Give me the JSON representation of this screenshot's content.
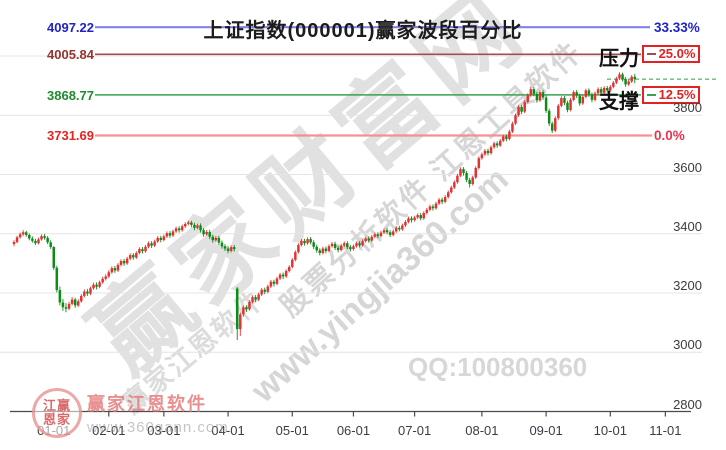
{
  "header": {
    "title": "上证指数(000001)赢家波段百分比"
  },
  "watermarks": {
    "site_name": "赢家财富网",
    "software_line": "股票分析软件 江恩工具软件",
    "url_diagonal": "www.yingjia360.com",
    "corner_software": "赢家江恩软件",
    "qq": "QQ:100800360"
  },
  "logo": {
    "seal_row1": "江赢",
    "seal_row2": "恩家",
    "name": "赢家江恩软件",
    "url": "www.360gann.com"
  },
  "chart_data": {
    "type": "candlestick",
    "symbol": "上证指数",
    "code": "000001",
    "up_color": "#e23333",
    "down_color": "#0d8c17",
    "grid_color": "#e4e4e4",
    "ylim": [
      2800,
      4160
    ],
    "gridline_prices": [
      4000,
      3800,
      3600,
      3400,
      3200,
      3000
    ],
    "y_axis_labels": [
      3800,
      3600,
      3400,
      3200,
      3000,
      2800
    ],
    "x_axis": {
      "labels": [
        "01-01",
        "02-01",
        "03-01",
        "04-01",
        "05-01",
        "06-01",
        "07-01",
        "08-01",
        "09-01",
        "10-01",
        "11-01"
      ],
      "month_start_indices": [
        13,
        31,
        49,
        70,
        91,
        111,
        131,
        153,
        174,
        195,
        213
      ]
    },
    "level_lines": [
      {
        "price": 4097.22,
        "label": "4097.22",
        "pct": "33.33%",
        "line_color": "#8282e6",
        "label_color": "#2023c6"
      },
      {
        "price": 4005.84,
        "label": "4005.84",
        "pct": "25.0%",
        "tag": "压力",
        "line_color": "#a34d4d",
        "label_color": "#9a3030"
      },
      {
        "price": 3868.77,
        "label": "3868.77",
        "pct": "12.5%",
        "tag": "支撑",
        "line_color": "#3aa14e",
        "label_color": "#1f8a30"
      },
      {
        "price": 3731.69,
        "label": "3731.69",
        "pct": "0.0%",
        "line_color": "#f49090",
        "label_color": "#e62222"
      }
    ],
    "last_price": 3922,
    "last_price_line_color": "#2f9e44",
    "candles": [
      [
        3365,
        3378,
        3358,
        3372
      ],
      [
        3372,
        3393,
        3368,
        3388
      ],
      [
        3388,
        3404,
        3384,
        3398
      ],
      [
        3398,
        3412,
        3392,
        3405
      ],
      [
        3405,
        3410,
        3390,
        3396
      ],
      [
        3396,
        3401,
        3378,
        3384
      ],
      [
        3384,
        3391,
        3370,
        3376
      ],
      [
        3376,
        3383,
        3362,
        3368
      ],
      [
        3368,
        3387,
        3364,
        3381
      ],
      [
        3381,
        3398,
        3377,
        3392
      ],
      [
        3392,
        3399,
        3380,
        3386
      ],
      [
        3386,
        3392,
        3365,
        3371
      ],
      [
        3371,
        3378,
        3349,
        3355
      ],
      [
        3355,
        3358,
        3278,
        3285
      ],
      [
        3285,
        3292,
        3202,
        3210
      ],
      [
        3210,
        3222,
        3158,
        3168
      ],
      [
        3168,
        3180,
        3140,
        3152
      ],
      [
        3152,
        3166,
        3135,
        3147
      ],
      [
        3147,
        3170,
        3142,
        3163
      ],
      [
        3163,
        3186,
        3158,
        3178
      ],
      [
        3178,
        3184,
        3150,
        3158
      ],
      [
        3158,
        3179,
        3153,
        3172
      ],
      [
        3172,
        3196,
        3167,
        3190
      ],
      [
        3190,
        3212,
        3185,
        3205
      ],
      [
        3205,
        3214,
        3190,
        3198
      ],
      [
        3198,
        3222,
        3193,
        3216
      ],
      [
        3216,
        3235,
        3211,
        3228
      ],
      [
        3228,
        3236,
        3212,
        3221
      ],
      [
        3221,
        3242,
        3216,
        3236
      ],
      [
        3236,
        3255,
        3231,
        3248
      ],
      [
        3248,
        3263,
        3242,
        3256
      ],
      [
        3256,
        3277,
        3251,
        3270
      ],
      [
        3270,
        3290,
        3265,
        3284
      ],
      [
        3284,
        3291,
        3268,
        3276
      ],
      [
        3276,
        3301,
        3271,
        3295
      ],
      [
        3295,
        3314,
        3290,
        3308
      ],
      [
        3308,
        3315,
        3292,
        3300
      ],
      [
        3300,
        3322,
        3295,
        3316
      ],
      [
        3316,
        3334,
        3311,
        3328
      ],
      [
        3328,
        3335,
        3312,
        3320
      ],
      [
        3320,
        3341,
        3315,
        3335
      ],
      [
        3335,
        3354,
        3330,
        3348
      ],
      [
        3348,
        3355,
        3333,
        3341
      ],
      [
        3341,
        3362,
        3336,
        3356
      ],
      [
        3356,
        3374,
        3351,
        3368
      ],
      [
        3368,
        3375,
        3352,
        3360
      ],
      [
        3360,
        3380,
        3355,
        3374
      ],
      [
        3374,
        3392,
        3369,
        3386
      ],
      [
        3386,
        3393,
        3371,
        3379
      ],
      [
        3379,
        3397,
        3374,
        3391
      ],
      [
        3391,
        3408,
        3386,
        3402
      ],
      [
        3402,
        3409,
        3386,
        3394
      ],
      [
        3394,
        3414,
        3389,
        3408
      ],
      [
        3408,
        3424,
        3403,
        3418
      ],
      [
        3418,
        3425,
        3404,
        3412
      ],
      [
        3412,
        3431,
        3407,
        3425
      ],
      [
        3425,
        3439,
        3420,
        3433
      ],
      [
        3433,
        3445,
        3428,
        3438
      ],
      [
        3438,
        3444,
        3422,
        3430
      ],
      [
        3430,
        3437,
        3412,
        3420
      ],
      [
        3420,
        3434,
        3415,
        3428
      ],
      [
        3428,
        3435,
        3404,
        3412
      ],
      [
        3412,
        3419,
        3390,
        3398
      ],
      [
        3398,
        3412,
        3393,
        3406
      ],
      [
        3406,
        3413,
        3382,
        3390
      ],
      [
        3390,
        3397,
        3370,
        3378
      ],
      [
        3378,
        3392,
        3373,
        3386
      ],
      [
        3386,
        3393,
        3362,
        3370
      ],
      [
        3370,
        3377,
        3350,
        3358
      ],
      [
        3358,
        3365,
        3342,
        3350
      ],
      [
        3350,
        3359,
        3334,
        3342
      ],
      [
        3342,
        3361,
        3337,
        3355
      ],
      [
        3355,
        3362,
        3340,
        3348
      ],
      [
        3215,
        3220,
        3041,
        3078
      ],
      [
        3078,
        3134,
        3055,
        3128
      ],
      [
        3128,
        3158,
        3120,
        3152
      ],
      [
        3152,
        3159,
        3136,
        3145
      ],
      [
        3145,
        3176,
        3140,
        3170
      ],
      [
        3170,
        3192,
        3165,
        3186
      ],
      [
        3186,
        3193,
        3170,
        3178
      ],
      [
        3178,
        3201,
        3173,
        3195
      ],
      [
        3195,
        3217,
        3190,
        3211
      ],
      [
        3211,
        3218,
        3196,
        3204
      ],
      [
        3204,
        3228,
        3199,
        3222
      ],
      [
        3222,
        3244,
        3217,
        3238
      ],
      [
        3238,
        3245,
        3222,
        3231
      ],
      [
        3231,
        3255,
        3226,
        3249
      ],
      [
        3249,
        3268,
        3244,
        3262
      ],
      [
        3262,
        3269,
        3247,
        3256
      ],
      [
        3256,
        3280,
        3251,
        3274
      ],
      [
        3274,
        3294,
        3269,
        3288
      ],
      [
        3288,
        3318,
        3283,
        3312
      ],
      [
        3312,
        3344,
        3307,
        3338
      ],
      [
        3338,
        3368,
        3333,
        3362
      ],
      [
        3362,
        3382,
        3357,
        3376
      ],
      [
        3376,
        3383,
        3360,
        3368
      ],
      [
        3368,
        3388,
        3363,
        3382
      ],
      [
        3382,
        3389,
        3364,
        3371
      ],
      [
        3371,
        3378,
        3348,
        3356
      ],
      [
        3356,
        3363,
        3336,
        3344
      ],
      [
        3344,
        3351,
        3327,
        3335
      ],
      [
        3335,
        3356,
        3330,
        3350
      ],
      [
        3350,
        3357,
        3334,
        3342
      ],
      [
        3342,
        3364,
        3337,
        3358
      ],
      [
        3358,
        3372,
        3353,
        3366
      ],
      [
        3366,
        3373,
        3345,
        3352
      ],
      [
        3352,
        3359,
        3337,
        3345
      ],
      [
        3345,
        3366,
        3340,
        3360
      ],
      [
        3360,
        3374,
        3355,
        3368
      ],
      [
        3368,
        3375,
        3348,
        3355
      ],
      [
        3355,
        3362,
        3340,
        3348
      ],
      [
        3348,
        3364,
        3343,
        3358
      ],
      [
        3358,
        3374,
        3353,
        3368
      ],
      [
        3368,
        3375,
        3354,
        3361
      ],
      [
        3361,
        3381,
        3356,
        3375
      ],
      [
        3375,
        3390,
        3370,
        3384
      ],
      [
        3384,
        3391,
        3370,
        3377
      ],
      [
        3377,
        3396,
        3372,
        3390
      ],
      [
        3390,
        3404,
        3385,
        3398
      ],
      [
        3398,
        3405,
        3385,
        3392
      ],
      [
        3392,
        3410,
        3387,
        3404
      ],
      [
        3404,
        3418,
        3399,
        3412
      ],
      [
        3412,
        3419,
        3398,
        3405
      ],
      [
        3405,
        3412,
        3389,
        3396
      ],
      [
        3396,
        3414,
        3391,
        3408
      ],
      [
        3408,
        3426,
        3403,
        3420
      ],
      [
        3420,
        3427,
        3408,
        3415
      ],
      [
        3415,
        3434,
        3410,
        3428
      ],
      [
        3428,
        3446,
        3423,
        3440
      ],
      [
        3440,
        3458,
        3435,
        3452
      ],
      [
        3452,
        3459,
        3438,
        3446
      ],
      [
        3446,
        3461,
        3441,
        3455
      ],
      [
        3455,
        3469,
        3450,
        3463
      ],
      [
        3463,
        3470,
        3445,
        3452
      ],
      [
        3452,
        3476,
        3447,
        3470
      ],
      [
        3470,
        3487,
        3465,
        3481
      ],
      [
        3481,
        3498,
        3476,
        3492
      ],
      [
        3492,
        3499,
        3478,
        3486
      ],
      [
        3486,
        3508,
        3481,
        3502
      ],
      [
        3502,
        3521,
        3497,
        3515
      ],
      [
        3515,
        3522,
        3500,
        3508
      ],
      [
        3508,
        3530,
        3503,
        3524
      ],
      [
        3524,
        3546,
        3519,
        3540
      ],
      [
        3540,
        3562,
        3535,
        3556
      ],
      [
        3556,
        3580,
        3551,
        3574
      ],
      [
        3574,
        3602,
        3569,
        3596
      ],
      [
        3596,
        3624,
        3591,
        3618
      ],
      [
        3618,
        3625,
        3596,
        3605
      ],
      [
        3605,
        3612,
        3574,
        3582
      ],
      [
        3582,
        3589,
        3556,
        3568
      ],
      [
        3568,
        3596,
        3563,
        3590
      ],
      [
        3590,
        3628,
        3585,
        3622
      ],
      [
        3622,
        3661,
        3617,
        3655
      ],
      [
        3655,
        3674,
        3650,
        3668
      ],
      [
        3668,
        3686,
        3663,
        3680
      ],
      [
        3680,
        3687,
        3664,
        3672
      ],
      [
        3672,
        3698,
        3667,
        3692
      ],
      [
        3692,
        3711,
        3687,
        3705
      ],
      [
        3705,
        3712,
        3690,
        3698
      ],
      [
        3698,
        3720,
        3693,
        3714
      ],
      [
        3714,
        3734,
        3709,
        3728
      ],
      [
        3728,
        3735,
        3712,
        3720
      ],
      [
        3720,
        3751,
        3715,
        3745
      ],
      [
        3745,
        3778,
        3740,
        3772
      ],
      [
        3772,
        3806,
        3767,
        3800
      ],
      [
        3800,
        3834,
        3795,
        3828
      ],
      [
        3828,
        3835,
        3804,
        3812
      ],
      [
        3812,
        3851,
        3807,
        3845
      ],
      [
        3845,
        3874,
        3840,
        3868
      ],
      [
        3868,
        3896,
        3863,
        3888
      ],
      [
        3888,
        3895,
        3864,
        3872
      ],
      [
        3872,
        3879,
        3842,
        3850
      ],
      [
        3850,
        3884,
        3845,
        3878
      ],
      [
        3878,
        3885,
        3852,
        3860
      ],
      [
        3860,
        3867,
        3808,
        3815
      ],
      [
        3815,
        3822,
        3764,
        3772
      ],
      [
        3772,
        3779,
        3740,
        3748
      ],
      [
        3748,
        3796,
        3743,
        3790
      ],
      [
        3790,
        3838,
        3785,
        3832
      ],
      [
        3832,
        3864,
        3827,
        3858
      ],
      [
        3858,
        3865,
        3834,
        3842
      ],
      [
        3842,
        3849,
        3810,
        3818
      ],
      [
        3818,
        3858,
        3813,
        3852
      ],
      [
        3852,
        3884,
        3847,
        3878
      ],
      [
        3878,
        3885,
        3858,
        3866
      ],
      [
        3866,
        3873,
        3832,
        3840
      ],
      [
        3840,
        3868,
        3835,
        3862
      ],
      [
        3862,
        3890,
        3857,
        3884
      ],
      [
        3884,
        3891,
        3862,
        3870
      ],
      [
        3870,
        3877,
        3844,
        3852
      ],
      [
        3852,
        3880,
        3847,
        3874
      ],
      [
        3874,
        3894,
        3869,
        3888
      ],
      [
        3888,
        3895,
        3868,
        3876
      ],
      [
        3876,
        3898,
        3871,
        3892
      ],
      [
        3892,
        3899,
        3876,
        3884
      ],
      [
        3884,
        3902,
        3879,
        3896
      ],
      [
        3896,
        3916,
        3891,
        3910
      ],
      [
        3910,
        3930,
        3905,
        3924
      ],
      [
        3924,
        3945,
        3919,
        3938
      ],
      [
        3938,
        3944,
        3914,
        3922
      ],
      [
        3922,
        3929,
        3896,
        3904
      ],
      [
        3904,
        3920,
        3899,
        3914
      ],
      [
        3914,
        3936,
        3909,
        3930
      ],
      [
        3930,
        3940,
        3908,
        3922
      ]
    ]
  }
}
